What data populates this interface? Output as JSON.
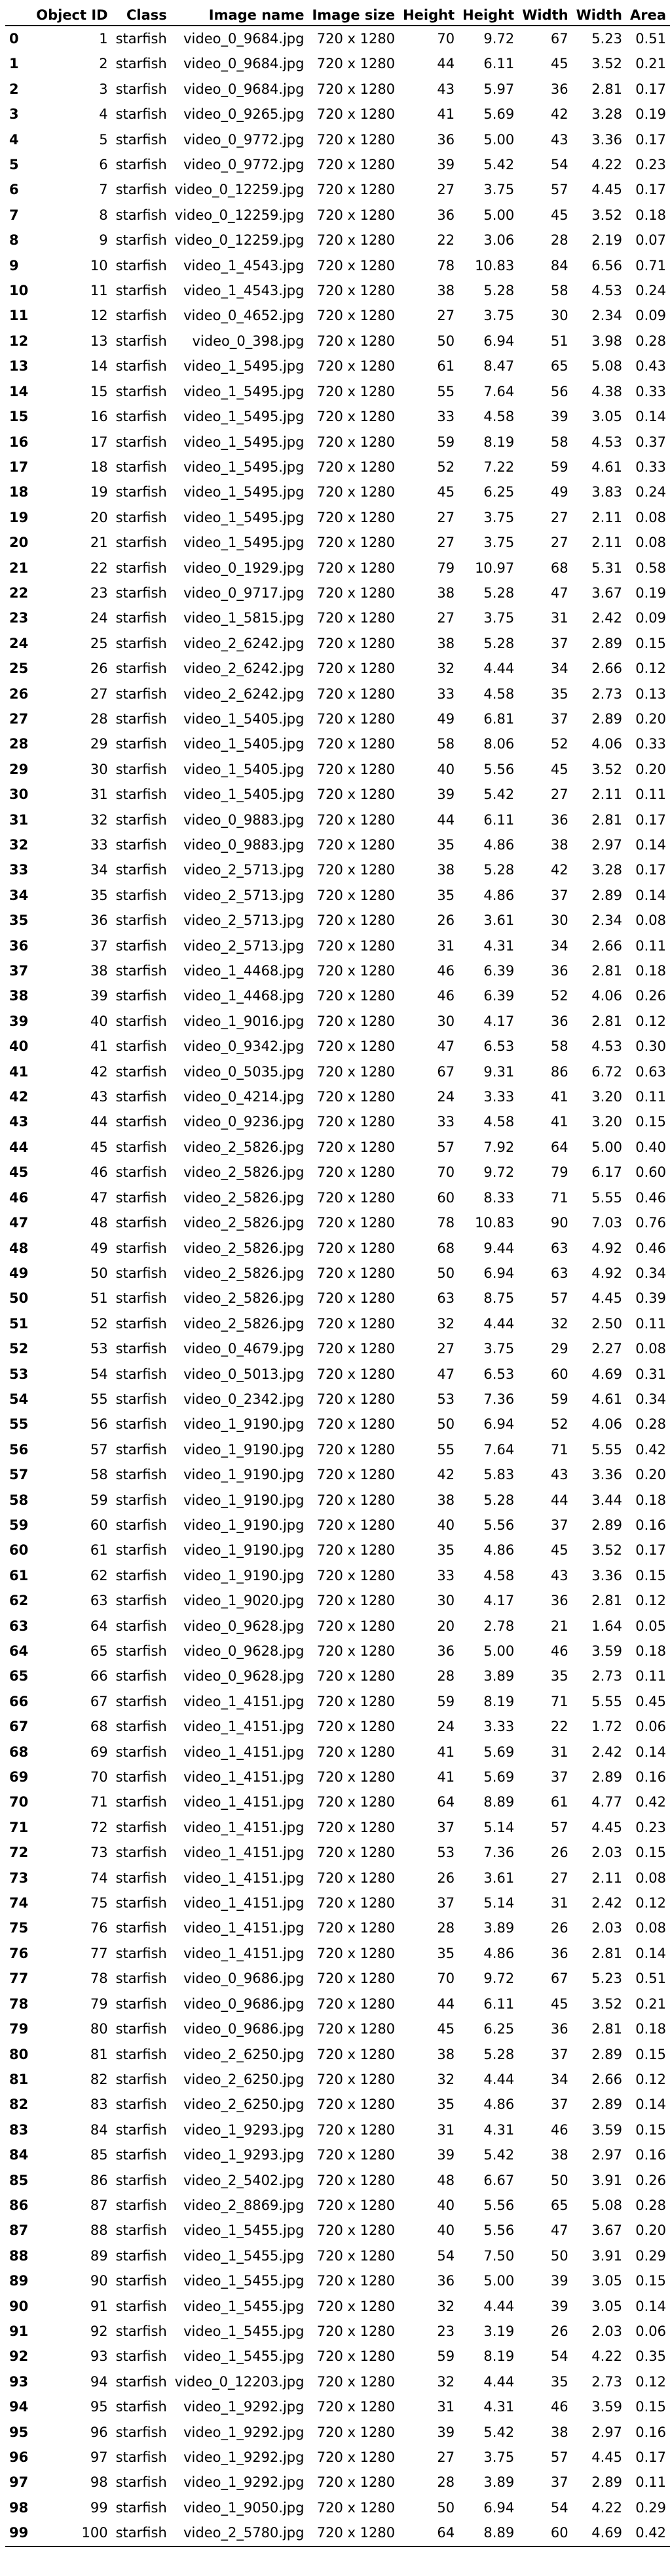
{
  "table": {
    "columns": [
      "",
      "Object ID",
      "Class",
      "Image name",
      "Image size",
      "Height",
      "Height",
      "Width",
      "Width",
      "Area"
    ],
    "rows": [
      [
        "0",
        "1",
        "starfish",
        "video_0_9684.jpg",
        "720 x 1280",
        "70",
        "9.72",
        "67",
        "5.23",
        "0.51"
      ],
      [
        "1",
        "2",
        "starfish",
        "video_0_9684.jpg",
        "720 x 1280",
        "44",
        "6.11",
        "45",
        "3.52",
        "0.21"
      ],
      [
        "2",
        "3",
        "starfish",
        "video_0_9684.jpg",
        "720 x 1280",
        "43",
        "5.97",
        "36",
        "2.81",
        "0.17"
      ],
      [
        "3",
        "4",
        "starfish",
        "video_0_9265.jpg",
        "720 x 1280",
        "41",
        "5.69",
        "42",
        "3.28",
        "0.19"
      ],
      [
        "4",
        "5",
        "starfish",
        "video_0_9772.jpg",
        "720 x 1280",
        "36",
        "5.00",
        "43",
        "3.36",
        "0.17"
      ],
      [
        "5",
        "6",
        "starfish",
        "video_0_9772.jpg",
        "720 x 1280",
        "39",
        "5.42",
        "54",
        "4.22",
        "0.23"
      ],
      [
        "6",
        "7",
        "starfish",
        "video_0_12259.jpg",
        "720 x 1280",
        "27",
        "3.75",
        "57",
        "4.45",
        "0.17"
      ],
      [
        "7",
        "8",
        "starfish",
        "video_0_12259.jpg",
        "720 x 1280",
        "36",
        "5.00",
        "45",
        "3.52",
        "0.18"
      ],
      [
        "8",
        "9",
        "starfish",
        "video_0_12259.jpg",
        "720 x 1280",
        "22",
        "3.06",
        "28",
        "2.19",
        "0.07"
      ],
      [
        "9",
        "10",
        "starfish",
        "video_1_4543.jpg",
        "720 x 1280",
        "78",
        "10.83",
        "84",
        "6.56",
        "0.71"
      ],
      [
        "10",
        "11",
        "starfish",
        "video_1_4543.jpg",
        "720 x 1280",
        "38",
        "5.28",
        "58",
        "4.53",
        "0.24"
      ],
      [
        "11",
        "12",
        "starfish",
        "video_0_4652.jpg",
        "720 x 1280",
        "27",
        "3.75",
        "30",
        "2.34",
        "0.09"
      ],
      [
        "12",
        "13",
        "starfish",
        "video_0_398.jpg",
        "720 x 1280",
        "50",
        "6.94",
        "51",
        "3.98",
        "0.28"
      ],
      [
        "13",
        "14",
        "starfish",
        "video_1_5495.jpg",
        "720 x 1280",
        "61",
        "8.47",
        "65",
        "5.08",
        "0.43"
      ],
      [
        "14",
        "15",
        "starfish",
        "video_1_5495.jpg",
        "720 x 1280",
        "55",
        "7.64",
        "56",
        "4.38",
        "0.33"
      ],
      [
        "15",
        "16",
        "starfish",
        "video_1_5495.jpg",
        "720 x 1280",
        "33",
        "4.58",
        "39",
        "3.05",
        "0.14"
      ],
      [
        "16",
        "17",
        "starfish",
        "video_1_5495.jpg",
        "720 x 1280",
        "59",
        "8.19",
        "58",
        "4.53",
        "0.37"
      ],
      [
        "17",
        "18",
        "starfish",
        "video_1_5495.jpg",
        "720 x 1280",
        "52",
        "7.22",
        "59",
        "4.61",
        "0.33"
      ],
      [
        "18",
        "19",
        "starfish",
        "video_1_5495.jpg",
        "720 x 1280",
        "45",
        "6.25",
        "49",
        "3.83",
        "0.24"
      ],
      [
        "19",
        "20",
        "starfish",
        "video_1_5495.jpg",
        "720 x 1280",
        "27",
        "3.75",
        "27",
        "2.11",
        "0.08"
      ],
      [
        "20",
        "21",
        "starfish",
        "video_1_5495.jpg",
        "720 x 1280",
        "27",
        "3.75",
        "27",
        "2.11",
        "0.08"
      ],
      [
        "21",
        "22",
        "starfish",
        "video_0_1929.jpg",
        "720 x 1280",
        "79",
        "10.97",
        "68",
        "5.31",
        "0.58"
      ],
      [
        "22",
        "23",
        "starfish",
        "video_0_9717.jpg",
        "720 x 1280",
        "38",
        "5.28",
        "47",
        "3.67",
        "0.19"
      ],
      [
        "23",
        "24",
        "starfish",
        "video_1_5815.jpg",
        "720 x 1280",
        "27",
        "3.75",
        "31",
        "2.42",
        "0.09"
      ],
      [
        "24",
        "25",
        "starfish",
        "video_2_6242.jpg",
        "720 x 1280",
        "38",
        "5.28",
        "37",
        "2.89",
        "0.15"
      ],
      [
        "25",
        "26",
        "starfish",
        "video_2_6242.jpg",
        "720 x 1280",
        "32",
        "4.44",
        "34",
        "2.66",
        "0.12"
      ],
      [
        "26",
        "27",
        "starfish",
        "video_2_6242.jpg",
        "720 x 1280",
        "33",
        "4.58",
        "35",
        "2.73",
        "0.13"
      ],
      [
        "27",
        "28",
        "starfish",
        "video_1_5405.jpg",
        "720 x 1280",
        "49",
        "6.81",
        "37",
        "2.89",
        "0.20"
      ],
      [
        "28",
        "29",
        "starfish",
        "video_1_5405.jpg",
        "720 x 1280",
        "58",
        "8.06",
        "52",
        "4.06",
        "0.33"
      ],
      [
        "29",
        "30",
        "starfish",
        "video_1_5405.jpg",
        "720 x 1280",
        "40",
        "5.56",
        "45",
        "3.52",
        "0.20"
      ],
      [
        "30",
        "31",
        "starfish",
        "video_1_5405.jpg",
        "720 x 1280",
        "39",
        "5.42",
        "27",
        "2.11",
        "0.11"
      ],
      [
        "31",
        "32",
        "starfish",
        "video_0_9883.jpg",
        "720 x 1280",
        "44",
        "6.11",
        "36",
        "2.81",
        "0.17"
      ],
      [
        "32",
        "33",
        "starfish",
        "video_0_9883.jpg",
        "720 x 1280",
        "35",
        "4.86",
        "38",
        "2.97",
        "0.14"
      ],
      [
        "33",
        "34",
        "starfish",
        "video_2_5713.jpg",
        "720 x 1280",
        "38",
        "5.28",
        "42",
        "3.28",
        "0.17"
      ],
      [
        "34",
        "35",
        "starfish",
        "video_2_5713.jpg",
        "720 x 1280",
        "35",
        "4.86",
        "37",
        "2.89",
        "0.14"
      ],
      [
        "35",
        "36",
        "starfish",
        "video_2_5713.jpg",
        "720 x 1280",
        "26",
        "3.61",
        "30",
        "2.34",
        "0.08"
      ],
      [
        "36",
        "37",
        "starfish",
        "video_2_5713.jpg",
        "720 x 1280",
        "31",
        "4.31",
        "34",
        "2.66",
        "0.11"
      ],
      [
        "37",
        "38",
        "starfish",
        "video_1_4468.jpg",
        "720 x 1280",
        "46",
        "6.39",
        "36",
        "2.81",
        "0.18"
      ],
      [
        "38",
        "39",
        "starfish",
        "video_1_4468.jpg",
        "720 x 1280",
        "46",
        "6.39",
        "52",
        "4.06",
        "0.26"
      ],
      [
        "39",
        "40",
        "starfish",
        "video_1_9016.jpg",
        "720 x 1280",
        "30",
        "4.17",
        "36",
        "2.81",
        "0.12"
      ],
      [
        "40",
        "41",
        "starfish",
        "video_0_9342.jpg",
        "720 x 1280",
        "47",
        "6.53",
        "58",
        "4.53",
        "0.30"
      ],
      [
        "41",
        "42",
        "starfish",
        "video_0_5035.jpg",
        "720 x 1280",
        "67",
        "9.31",
        "86",
        "6.72",
        "0.63"
      ],
      [
        "42",
        "43",
        "starfish",
        "video_0_4214.jpg",
        "720 x 1280",
        "24",
        "3.33",
        "41",
        "3.20",
        "0.11"
      ],
      [
        "43",
        "44",
        "starfish",
        "video_0_9236.jpg",
        "720 x 1280",
        "33",
        "4.58",
        "41",
        "3.20",
        "0.15"
      ],
      [
        "44",
        "45",
        "starfish",
        "video_2_5826.jpg",
        "720 x 1280",
        "57",
        "7.92",
        "64",
        "5.00",
        "0.40"
      ],
      [
        "45",
        "46",
        "starfish",
        "video_2_5826.jpg",
        "720 x 1280",
        "70",
        "9.72",
        "79",
        "6.17",
        "0.60"
      ],
      [
        "46",
        "47",
        "starfish",
        "video_2_5826.jpg",
        "720 x 1280",
        "60",
        "8.33",
        "71",
        "5.55",
        "0.46"
      ],
      [
        "47",
        "48",
        "starfish",
        "video_2_5826.jpg",
        "720 x 1280",
        "78",
        "10.83",
        "90",
        "7.03",
        "0.76"
      ],
      [
        "48",
        "49",
        "starfish",
        "video_2_5826.jpg",
        "720 x 1280",
        "68",
        "9.44",
        "63",
        "4.92",
        "0.46"
      ],
      [
        "49",
        "50",
        "starfish",
        "video_2_5826.jpg",
        "720 x 1280",
        "50",
        "6.94",
        "63",
        "4.92",
        "0.34"
      ],
      [
        "50",
        "51",
        "starfish",
        "video_2_5826.jpg",
        "720 x 1280",
        "63",
        "8.75",
        "57",
        "4.45",
        "0.39"
      ],
      [
        "51",
        "52",
        "starfish",
        "video_2_5826.jpg",
        "720 x 1280",
        "32",
        "4.44",
        "32",
        "2.50",
        "0.11"
      ],
      [
        "52",
        "53",
        "starfish",
        "video_0_4679.jpg",
        "720 x 1280",
        "27",
        "3.75",
        "29",
        "2.27",
        "0.08"
      ],
      [
        "53",
        "54",
        "starfish",
        "video_0_5013.jpg",
        "720 x 1280",
        "47",
        "6.53",
        "60",
        "4.69",
        "0.31"
      ],
      [
        "54",
        "55",
        "starfish",
        "video_0_2342.jpg",
        "720 x 1280",
        "53",
        "7.36",
        "59",
        "4.61",
        "0.34"
      ],
      [
        "55",
        "56",
        "starfish",
        "video_1_9190.jpg",
        "720 x 1280",
        "50",
        "6.94",
        "52",
        "4.06",
        "0.28"
      ],
      [
        "56",
        "57",
        "starfish",
        "video_1_9190.jpg",
        "720 x 1280",
        "55",
        "7.64",
        "71",
        "5.55",
        "0.42"
      ],
      [
        "57",
        "58",
        "starfish",
        "video_1_9190.jpg",
        "720 x 1280",
        "42",
        "5.83",
        "43",
        "3.36",
        "0.20"
      ],
      [
        "58",
        "59",
        "starfish",
        "video_1_9190.jpg",
        "720 x 1280",
        "38",
        "5.28",
        "44",
        "3.44",
        "0.18"
      ],
      [
        "59",
        "60",
        "starfish",
        "video_1_9190.jpg",
        "720 x 1280",
        "40",
        "5.56",
        "37",
        "2.89",
        "0.16"
      ],
      [
        "60",
        "61",
        "starfish",
        "video_1_9190.jpg",
        "720 x 1280",
        "35",
        "4.86",
        "45",
        "3.52",
        "0.17"
      ],
      [
        "61",
        "62",
        "starfish",
        "video_1_9190.jpg",
        "720 x 1280",
        "33",
        "4.58",
        "43",
        "3.36",
        "0.15"
      ],
      [
        "62",
        "63",
        "starfish",
        "video_1_9020.jpg",
        "720 x 1280",
        "30",
        "4.17",
        "36",
        "2.81",
        "0.12"
      ],
      [
        "63",
        "64",
        "starfish",
        "video_0_9628.jpg",
        "720 x 1280",
        "20",
        "2.78",
        "21",
        "1.64",
        "0.05"
      ],
      [
        "64",
        "65",
        "starfish",
        "video_0_9628.jpg",
        "720 x 1280",
        "36",
        "5.00",
        "46",
        "3.59",
        "0.18"
      ],
      [
        "65",
        "66",
        "starfish",
        "video_0_9628.jpg",
        "720 x 1280",
        "28",
        "3.89",
        "35",
        "2.73",
        "0.11"
      ],
      [
        "66",
        "67",
        "starfish",
        "video_1_4151.jpg",
        "720 x 1280",
        "59",
        "8.19",
        "71",
        "5.55",
        "0.45"
      ],
      [
        "67",
        "68",
        "starfish",
        "video_1_4151.jpg",
        "720 x 1280",
        "24",
        "3.33",
        "22",
        "1.72",
        "0.06"
      ],
      [
        "68",
        "69",
        "starfish",
        "video_1_4151.jpg",
        "720 x 1280",
        "41",
        "5.69",
        "31",
        "2.42",
        "0.14"
      ],
      [
        "69",
        "70",
        "starfish",
        "video_1_4151.jpg",
        "720 x 1280",
        "41",
        "5.69",
        "37",
        "2.89",
        "0.16"
      ],
      [
        "70",
        "71",
        "starfish",
        "video_1_4151.jpg",
        "720 x 1280",
        "64",
        "8.89",
        "61",
        "4.77",
        "0.42"
      ],
      [
        "71",
        "72",
        "starfish",
        "video_1_4151.jpg",
        "720 x 1280",
        "37",
        "5.14",
        "57",
        "4.45",
        "0.23"
      ],
      [
        "72",
        "73",
        "starfish",
        "video_1_4151.jpg",
        "720 x 1280",
        "53",
        "7.36",
        "26",
        "2.03",
        "0.15"
      ],
      [
        "73",
        "74",
        "starfish",
        "video_1_4151.jpg",
        "720 x 1280",
        "26",
        "3.61",
        "27",
        "2.11",
        "0.08"
      ],
      [
        "74",
        "75",
        "starfish",
        "video_1_4151.jpg",
        "720 x 1280",
        "37",
        "5.14",
        "31",
        "2.42",
        "0.12"
      ],
      [
        "75",
        "76",
        "starfish",
        "video_1_4151.jpg",
        "720 x 1280",
        "28",
        "3.89",
        "26",
        "2.03",
        "0.08"
      ],
      [
        "76",
        "77",
        "starfish",
        "video_1_4151.jpg",
        "720 x 1280",
        "35",
        "4.86",
        "36",
        "2.81",
        "0.14"
      ],
      [
        "77",
        "78",
        "starfish",
        "video_0_9686.jpg",
        "720 x 1280",
        "70",
        "9.72",
        "67",
        "5.23",
        "0.51"
      ],
      [
        "78",
        "79",
        "starfish",
        "video_0_9686.jpg",
        "720 x 1280",
        "44",
        "6.11",
        "45",
        "3.52",
        "0.21"
      ],
      [
        "79",
        "80",
        "starfish",
        "video_0_9686.jpg",
        "720 x 1280",
        "45",
        "6.25",
        "36",
        "2.81",
        "0.18"
      ],
      [
        "80",
        "81",
        "starfish",
        "video_2_6250.jpg",
        "720 x 1280",
        "38",
        "5.28",
        "37",
        "2.89",
        "0.15"
      ],
      [
        "81",
        "82",
        "starfish",
        "video_2_6250.jpg",
        "720 x 1280",
        "32",
        "4.44",
        "34",
        "2.66",
        "0.12"
      ],
      [
        "82",
        "83",
        "starfish",
        "video_2_6250.jpg",
        "720 x 1280",
        "35",
        "4.86",
        "37",
        "2.89",
        "0.14"
      ],
      [
        "83",
        "84",
        "starfish",
        "video_1_9293.jpg",
        "720 x 1280",
        "31",
        "4.31",
        "46",
        "3.59",
        "0.15"
      ],
      [
        "84",
        "85",
        "starfish",
        "video_1_9293.jpg",
        "720 x 1280",
        "39",
        "5.42",
        "38",
        "2.97",
        "0.16"
      ],
      [
        "85",
        "86",
        "starfish",
        "video_2_5402.jpg",
        "720 x 1280",
        "48",
        "6.67",
        "50",
        "3.91",
        "0.26"
      ],
      [
        "86",
        "87",
        "starfish",
        "video_2_8869.jpg",
        "720 x 1280",
        "40",
        "5.56",
        "65",
        "5.08",
        "0.28"
      ],
      [
        "87",
        "88",
        "starfish",
        "video_1_5455.jpg",
        "720 x 1280",
        "40",
        "5.56",
        "47",
        "3.67",
        "0.20"
      ],
      [
        "88",
        "89",
        "starfish",
        "video_1_5455.jpg",
        "720 x 1280",
        "54",
        "7.50",
        "50",
        "3.91",
        "0.29"
      ],
      [
        "89",
        "90",
        "starfish",
        "video_1_5455.jpg",
        "720 x 1280",
        "36",
        "5.00",
        "39",
        "3.05",
        "0.15"
      ],
      [
        "90",
        "91",
        "starfish",
        "video_1_5455.jpg",
        "720 x 1280",
        "32",
        "4.44",
        "39",
        "3.05",
        "0.14"
      ],
      [
        "91",
        "92",
        "starfish",
        "video_1_5455.jpg",
        "720 x 1280",
        "23",
        "3.19",
        "26",
        "2.03",
        "0.06"
      ],
      [
        "92",
        "93",
        "starfish",
        "video_1_5455.jpg",
        "720 x 1280",
        "59",
        "8.19",
        "54",
        "4.22",
        "0.35"
      ],
      [
        "93",
        "94",
        "starfish",
        "video_0_12203.jpg",
        "720 x 1280",
        "32",
        "4.44",
        "35",
        "2.73",
        "0.12"
      ],
      [
        "94",
        "95",
        "starfish",
        "video_1_9292.jpg",
        "720 x 1280",
        "31",
        "4.31",
        "46",
        "3.59",
        "0.15"
      ],
      [
        "95",
        "96",
        "starfish",
        "video_1_9292.jpg",
        "720 x 1280",
        "39",
        "5.42",
        "38",
        "2.97",
        "0.16"
      ],
      [
        "96",
        "97",
        "starfish",
        "video_1_9292.jpg",
        "720 x 1280",
        "27",
        "3.75",
        "57",
        "4.45",
        "0.17"
      ],
      [
        "97",
        "98",
        "starfish",
        "video_1_9292.jpg",
        "720 x 1280",
        "28",
        "3.89",
        "37",
        "2.89",
        "0.11"
      ],
      [
        "98",
        "99",
        "starfish",
        "video_1_9050.jpg",
        "720 x 1280",
        "50",
        "6.94",
        "54",
        "4.22",
        "0.29"
      ],
      [
        "99",
        "100",
        "starfish",
        "video_2_5780.jpg",
        "720 x 1280",
        "64",
        "8.89",
        "60",
        "4.69",
        "0.42"
      ]
    ]
  }
}
